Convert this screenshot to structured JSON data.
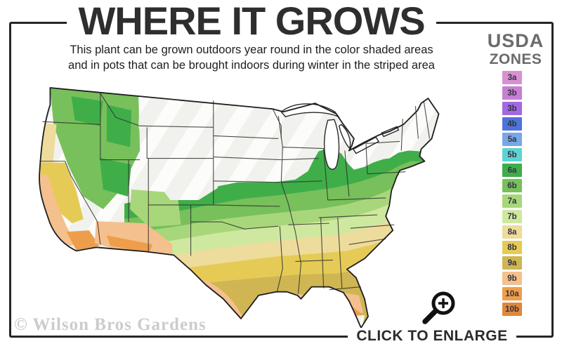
{
  "title": "WHERE IT GROWS",
  "subtitle": {
    "line1": "This plant can be grown outdoors year round in the color shaded areas",
    "line2": "and in pots that can be brought indoors during winter in the striped area"
  },
  "legend": {
    "heading_line1": "USDA",
    "heading_line2": "ZONES",
    "zones": [
      {
        "label": "3a",
        "color": "#d98fd3"
      },
      {
        "label": "3b",
        "color": "#c77fd2"
      },
      {
        "label": "3b",
        "color": "#a269e0"
      },
      {
        "label": "4b",
        "color": "#4e73da"
      },
      {
        "label": "5a",
        "color": "#79a7e6"
      },
      {
        "label": "5b",
        "color": "#5fd3d4"
      },
      {
        "label": "6a",
        "color": "#3fae49"
      },
      {
        "label": "6b",
        "color": "#77c05b"
      },
      {
        "label": "7a",
        "color": "#a8d77b"
      },
      {
        "label": "7b",
        "color": "#cfe8a0"
      },
      {
        "label": "8a",
        "color": "#eddc9b"
      },
      {
        "label": "8b",
        "color": "#e5cb56"
      },
      {
        "label": "9a",
        "color": "#d0b553"
      },
      {
        "label": "9b",
        "color": "#f4c08d"
      },
      {
        "label": "10a",
        "color": "#ee9e4b"
      },
      {
        "label": "10b",
        "color": "#e1873c"
      }
    ]
  },
  "map": {
    "description": "Contiguous United States map shaded by USDA hardiness zone; unshaded striped area in the north"
  },
  "watermark": "© Wilson Bros Gardens",
  "enlarge": {
    "label": "CLICK TO ENLARGE",
    "icon": "magnifier-plus-icon"
  }
}
